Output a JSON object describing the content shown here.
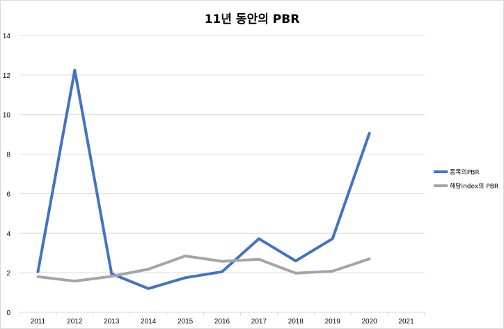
{
  "chart_data": {
    "type": "line",
    "title": "11년 동안의 PBR",
    "xlabel": "",
    "ylabel": "",
    "ylim": [
      0,
      14
    ],
    "yticks": [
      0,
      2,
      4,
      6,
      8,
      10,
      12,
      14
    ],
    "categories": [
      "2011",
      "2012",
      "2013",
      "2014",
      "2015",
      "2016",
      "2017",
      "2018",
      "2019",
      "2020",
      "2021"
    ],
    "grid": true,
    "legend_position": "right",
    "series": [
      {
        "name": "종목의PBR",
        "color": "#4472c4",
        "values": [
          2.05,
          12.25,
          1.95,
          1.2,
          1.75,
          2.05,
          3.72,
          2.6,
          3.72,
          9.05,
          null
        ]
      },
      {
        "name": "해당index의 PBR",
        "color": "#a5a5a5",
        "values": [
          1.8,
          1.58,
          1.82,
          2.18,
          2.85,
          2.58,
          2.68,
          1.98,
          2.08,
          2.7,
          null
        ]
      }
    ]
  }
}
